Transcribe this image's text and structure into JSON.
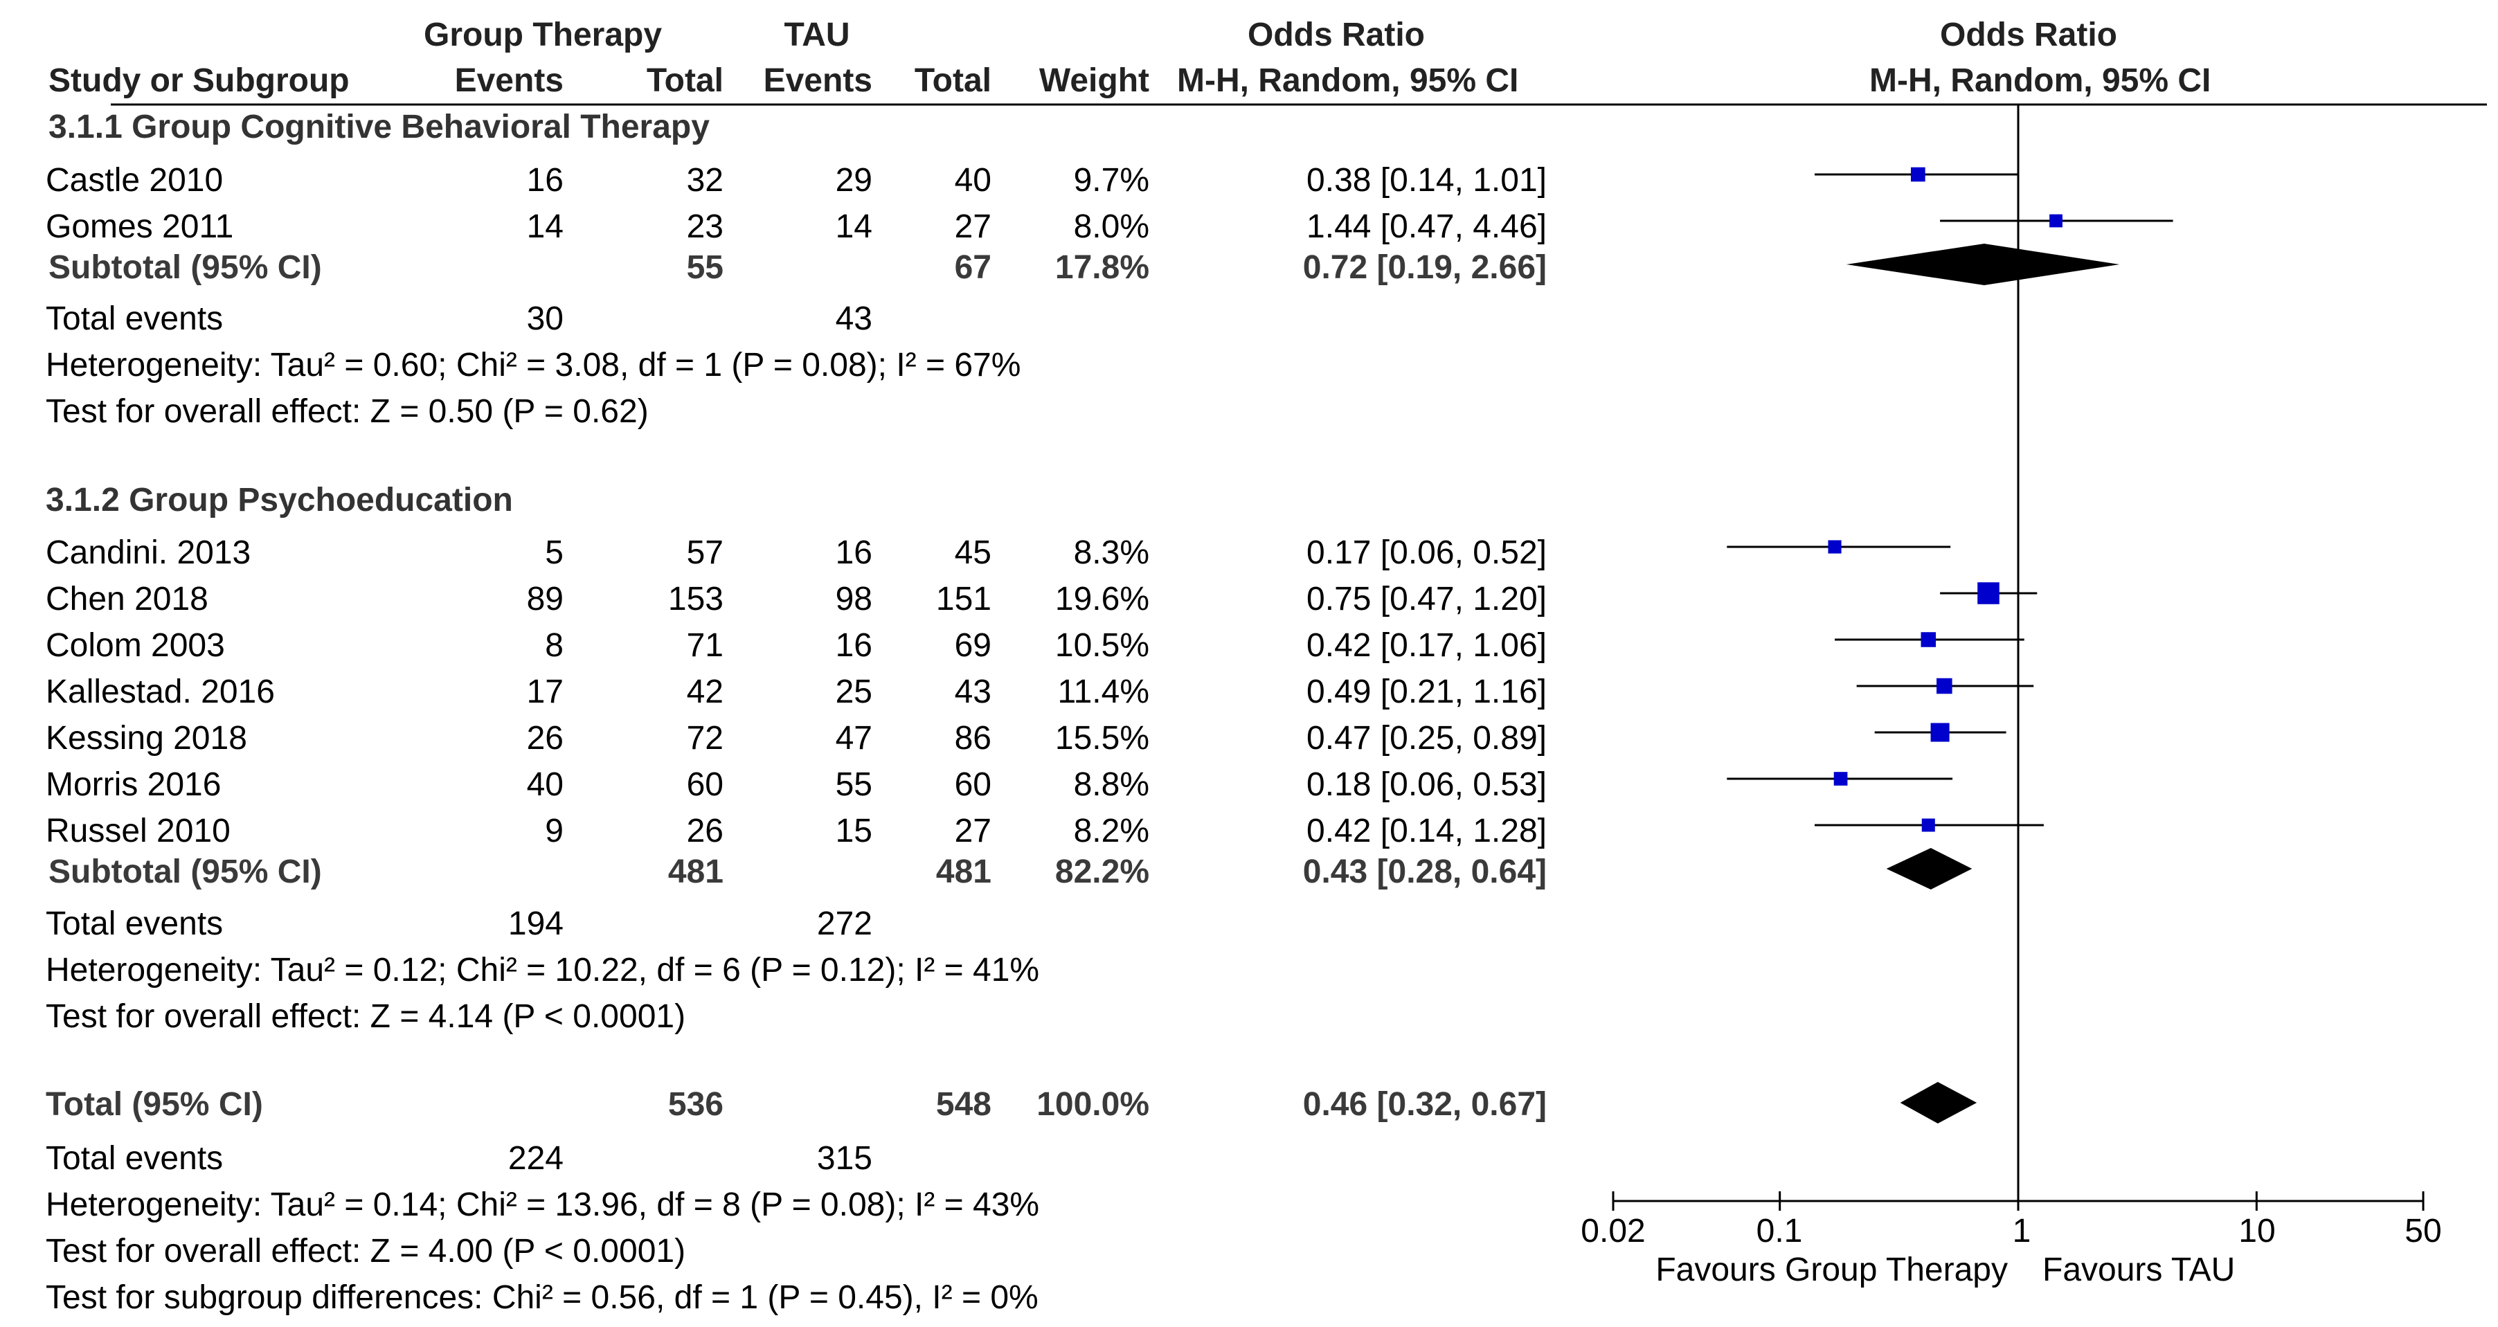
{
  "headers": {
    "group1": "Group Therapy",
    "group2": "TAU",
    "or_left": "Odds Ratio",
    "or_right": "Odds Ratio",
    "study": "Study or Subgroup",
    "events1": "Events",
    "total1": "Total",
    "events2": "Events",
    "total2": "Total",
    "weight": "Weight",
    "method_left": "M-H, Random, 95% CI",
    "method_right": "M-H, Random, 95% CI"
  },
  "subgroups": [
    {
      "title": "3.1.1 Group Cognitive Behavioral Therapy",
      "studies": [
        {
          "name": "Castle 2010",
          "e1": "16",
          "t1": "32",
          "e2": "29",
          "t2": "40",
          "weight": "9.7%",
          "ci": "0.38 [0.14, 1.01]"
        },
        {
          "name": "Gomes 2011",
          "e1": "14",
          "t1": "23",
          "e2": "14",
          "t2": "27",
          "weight": "8.0%",
          "ci": "1.44 [0.47, 4.46]"
        }
      ],
      "subtotal": {
        "label": "Subtotal (95% CI)",
        "t1": "55",
        "t2": "67",
        "weight": "17.8%",
        "ci": "0.72 [0.19, 2.66]"
      },
      "total_events": {
        "label": "Total events",
        "e1": "30",
        "e2": "43"
      },
      "heterogeneity": "Heterogeneity: Tau² = 0.60; Chi² = 3.08, df = 1 (P = 0.08); I² = 67%",
      "overall_effect": "Test for overall effect: Z = 0.50 (P = 0.62)"
    },
    {
      "title": "3.1.2 Group Psychoeducation",
      "studies": [
        {
          "name": "Candini. 2013",
          "e1": "5",
          "t1": "57",
          "e2": "16",
          "t2": "45",
          "weight": "8.3%",
          "ci": "0.17 [0.06, 0.52]"
        },
        {
          "name": "Chen 2018",
          "e1": "89",
          "t1": "153",
          "e2": "98",
          "t2": "151",
          "weight": "19.6%",
          "ci": "0.75 [0.47, 1.20]"
        },
        {
          "name": "Colom 2003",
          "e1": "8",
          "t1": "71",
          "e2": "16",
          "t2": "69",
          "weight": "10.5%",
          "ci": "0.42 [0.17, 1.06]"
        },
        {
          "name": "Kallestad. 2016",
          "e1": "17",
          "t1": "42",
          "e2": "25",
          "t2": "43",
          "weight": "11.4%",
          "ci": "0.49 [0.21, 1.16]"
        },
        {
          "name": "Kessing 2018",
          "e1": "26",
          "t1": "72",
          "e2": "47",
          "t2": "86",
          "weight": "15.5%",
          "ci": "0.47 [0.25, 0.89]"
        },
        {
          "name": "Morris 2016",
          "e1": "40",
          "t1": "60",
          "e2": "55",
          "t2": "60",
          "weight": "8.8%",
          "ci": "0.18 [0.06, 0.53]"
        },
        {
          "name": "Russel 2010",
          "e1": "9",
          "t1": "26",
          "e2": "15",
          "t2": "27",
          "weight": "8.2%",
          "ci": "0.42 [0.14, 1.28]"
        }
      ],
      "subtotal": {
        "label": "Subtotal (95% CI)",
        "t1": "481",
        "t2": "481",
        "weight": "82.2%",
        "ci": "0.43 [0.28, 0.64]"
      },
      "total_events": {
        "label": "Total events",
        "e1": "194",
        "e2": "272"
      },
      "heterogeneity": "Heterogeneity: Tau² = 0.12; Chi² = 10.22, df = 6 (P = 0.12); I² = 41%",
      "overall_effect": "Test for overall effect: Z = 4.14 (P < 0.0001)"
    }
  ],
  "total": {
    "label": "Total (95% CI)",
    "t1": "536",
    "t2": "548",
    "weight": "100.0%",
    "ci": "0.46 [0.32, 0.67]",
    "events_label": "Total events",
    "e1": "224",
    "e2": "315",
    "heterogeneity": "Heterogeneity: Tau² = 0.14; Chi² = 13.96, df = 8 (P = 0.08); I² = 43%",
    "overall_effect": "Test for overall effect: Z = 4.00 (P < 0.0001)",
    "subgroup_diff": "Test for subgroup differences: Chi² = 0.56, df = 1 (P = 0.45), I² = 0%"
  },
  "axis": {
    "ticks": [
      "0.02",
      "0.1",
      "1",
      "10",
      "50"
    ],
    "favours_left": "Favours Group Therapy",
    "favours_right": "Favours TAU"
  },
  "chart_data": {
    "type": "forest",
    "scale": "log",
    "xlim": [
      0.02,
      50
    ],
    "reference_line": 1,
    "tick_values": [
      0.02,
      0.1,
      1,
      10,
      50
    ],
    "colors": {
      "square": "#0000cc",
      "diamond": "#000000",
      "line": "#000000"
    },
    "studies": [
      {
        "name": "Castle 2010",
        "or": 0.38,
        "lo": 0.14,
        "hi": 1.01,
        "weight": 9.7
      },
      {
        "name": "Gomes 2011",
        "or": 1.44,
        "lo": 0.47,
        "hi": 4.46,
        "weight": 8.0
      },
      {
        "name": "Candini. 2013",
        "or": 0.17,
        "lo": 0.06,
        "hi": 0.52,
        "weight": 8.3
      },
      {
        "name": "Chen 2018",
        "or": 0.75,
        "lo": 0.47,
        "hi": 1.2,
        "weight": 19.6
      },
      {
        "name": "Colom 2003",
        "or": 0.42,
        "lo": 0.17,
        "hi": 1.06,
        "weight": 10.5
      },
      {
        "name": "Kallestad. 2016",
        "or": 0.49,
        "lo": 0.21,
        "hi": 1.16,
        "weight": 11.4
      },
      {
        "name": "Kessing 2018",
        "or": 0.47,
        "lo": 0.25,
        "hi": 0.89,
        "weight": 15.5
      },
      {
        "name": "Morris 2016",
        "or": 0.18,
        "lo": 0.06,
        "hi": 0.53,
        "weight": 8.8
      },
      {
        "name": "Russel 2010",
        "or": 0.42,
        "lo": 0.14,
        "hi": 1.28,
        "weight": 8.2
      }
    ],
    "pooled": [
      {
        "name": "Subtotal 3.1.1",
        "or": 0.72,
        "lo": 0.19,
        "hi": 2.66
      },
      {
        "name": "Subtotal 3.1.2",
        "or": 0.43,
        "lo": 0.28,
        "hi": 0.64
      },
      {
        "name": "Total",
        "or": 0.46,
        "lo": 0.32,
        "hi": 0.67
      }
    ]
  }
}
